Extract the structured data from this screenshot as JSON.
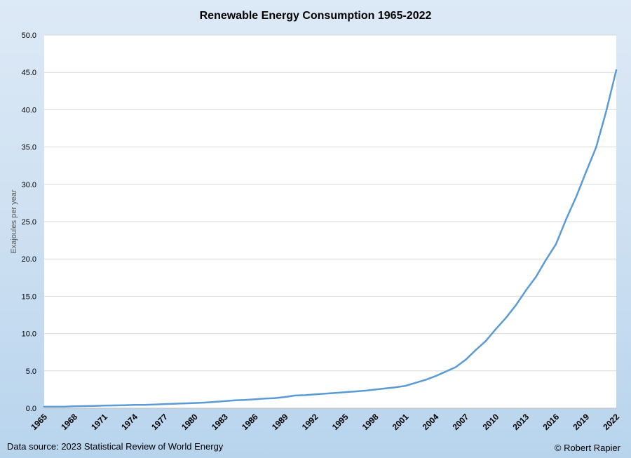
{
  "chart_data": {
    "type": "line",
    "title": "Renewable Energy Consumption 1965-2022",
    "ylabel": "Exajoules per year",
    "xlabel": "",
    "ylim": [
      0,
      50
    ],
    "ytick_labels": [
      "0.0",
      "5.0",
      "10.0",
      "15.0",
      "20.0",
      "25.0",
      "30.0",
      "35.0",
      "40.0",
      "45.0",
      "50.0"
    ],
    "xtick_labels": [
      "1965",
      "1968",
      "1971",
      "1974",
      "1977",
      "1980",
      "1983",
      "1986",
      "1989",
      "1992",
      "1995",
      "1998",
      "2001",
      "2004",
      "2007",
      "2010",
      "2013",
      "2016",
      "2019",
      "2022"
    ],
    "grid": true,
    "legend": "none",
    "x": [
      1965,
      1966,
      1967,
      1968,
      1969,
      1970,
      1971,
      1972,
      1973,
      1974,
      1975,
      1976,
      1977,
      1978,
      1979,
      1980,
      1981,
      1982,
      1983,
      1984,
      1985,
      1986,
      1987,
      1988,
      1989,
      1990,
      1991,
      1992,
      1993,
      1994,
      1995,
      1996,
      1997,
      1998,
      1999,
      2000,
      2001,
      2002,
      2003,
      2004,
      2005,
      2006,
      2007,
      2008,
      2009,
      2010,
      2011,
      2012,
      2013,
      2014,
      2015,
      2016,
      2017,
      2018,
      2019,
      2020,
      2021,
      2022
    ],
    "series": [
      {
        "color": "#5b9bd5",
        "values": [
          0.2,
          0.2,
          0.2,
          0.25,
          0.28,
          0.3,
          0.35,
          0.38,
          0.4,
          0.45,
          0.45,
          0.5,
          0.55,
          0.6,
          0.65,
          0.7,
          0.75,
          0.85,
          0.95,
          1.05,
          1.1,
          1.2,
          1.3,
          1.35,
          1.5,
          1.7,
          1.75,
          1.85,
          1.95,
          2.05,
          2.15,
          2.25,
          2.35,
          2.5,
          2.65,
          2.8,
          3.0,
          3.4,
          3.8,
          4.3,
          4.9,
          5.5,
          6.5,
          7.8,
          9.0,
          10.6,
          12.1,
          13.8,
          15.8,
          17.6,
          19.9,
          22.0,
          25.3,
          28.3,
          31.7,
          35.0,
          39.8,
          45.3
        ]
      }
    ]
  },
  "footer": {
    "source": "Data source: 2023 Statistical Review of World Energy",
    "credit": "© Robert Rapier"
  }
}
